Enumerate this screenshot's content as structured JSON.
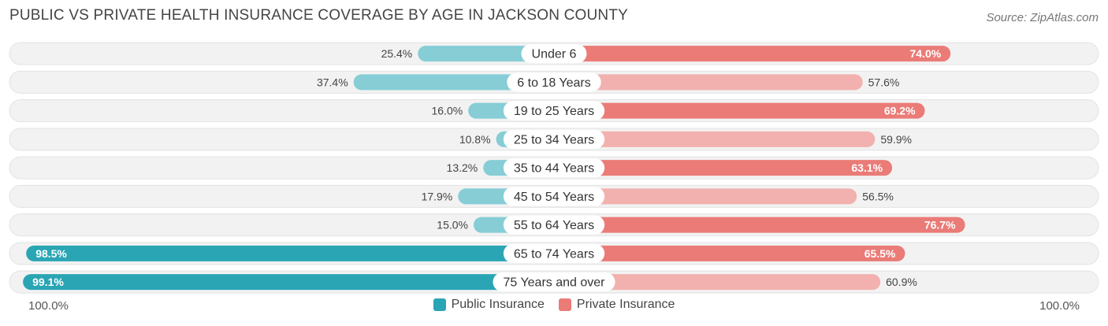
{
  "header": {
    "title": "PUBLIC VS PRIVATE HEALTH INSURANCE COVERAGE BY AGE IN JACKSON COUNTY",
    "source": "Source: ZipAtlas.com"
  },
  "axis": {
    "left_label": "100.0%",
    "right_label": "100.0%"
  },
  "legend": {
    "public_label": "Public Insurance",
    "private_label": "Private Insurance"
  },
  "colors": {
    "public_strong": "#2aa5b4",
    "public_light": "#86cdd6",
    "private_strong": "#ea7b77",
    "private_light": "#f2b1ae",
    "row_bg": "#f2f2f2"
  },
  "chart_data": {
    "type": "bar",
    "orientation": "horizontal-diverging",
    "title": "PUBLIC VS PRIVATE HEALTH INSURANCE COVERAGE BY AGE IN JACKSON COUNTY",
    "categories": [
      "Under 6",
      "6 to 18 Years",
      "19 to 25 Years",
      "25 to 34 Years",
      "35 to 44 Years",
      "45 to 54 Years",
      "55 to 64 Years",
      "65 to 74 Years",
      "75 Years and over"
    ],
    "series": [
      {
        "name": "Public Insurance",
        "values": [
          25.4,
          37.4,
          16.0,
          10.8,
          13.2,
          17.9,
          15.0,
          98.5,
          99.1
        ],
        "labels": [
          "25.4%",
          "37.4%",
          "16.0%",
          "10.8%",
          "13.2%",
          "17.9%",
          "15.0%",
          "98.5%",
          "99.1%"
        ]
      },
      {
        "name": "Private Insurance",
        "values": [
          74.0,
          57.6,
          69.2,
          59.9,
          63.1,
          56.5,
          76.7,
          65.5,
          60.9
        ],
        "labels": [
          "74.0%",
          "57.6%",
          "69.2%",
          "59.9%",
          "63.1%",
          "56.5%",
          "76.7%",
          "65.5%",
          "60.9%"
        ]
      }
    ],
    "xlim": [
      -100,
      100
    ],
    "xlabel_left": "100.0%",
    "xlabel_right": "100.0%",
    "legend_position": "bottom"
  }
}
